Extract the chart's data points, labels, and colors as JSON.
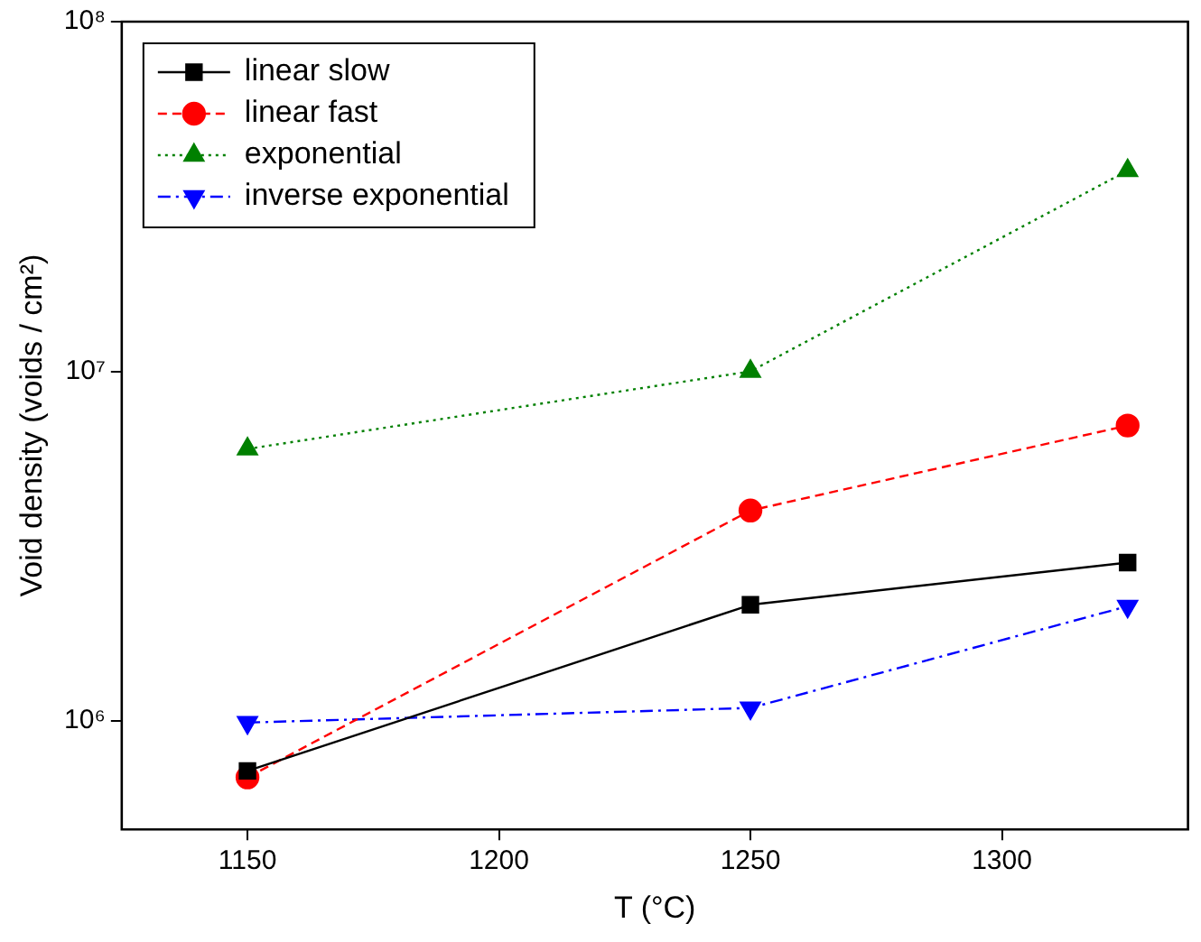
{
  "chart_data": {
    "type": "line",
    "xlabel": "T (°C)",
    "ylabel": "Void density (voids / cm²)",
    "x": [
      1150,
      1250,
      1325
    ],
    "series": [
      {
        "name": "linear slow",
        "color": "#000000",
        "marker": "square",
        "line_style": "solid",
        "values": [
          720000,
          2150000,
          2840000
        ]
      },
      {
        "name": "linear fast",
        "color": "#ff0000",
        "marker": "circle",
        "line_style": "dashed",
        "values": [
          690000,
          4000000,
          7000000
        ]
      },
      {
        "name": "exponential",
        "color": "#008000",
        "marker": "triangle",
        "line_style": "dotted",
        "values": [
          6000000,
          10000000,
          37500000
        ]
      },
      {
        "name": "inverse exponential",
        "color": "#0000ff",
        "marker": "triangle-down",
        "line_style": "dashdot",
        "values": [
          990000,
          1090000,
          2130000
        ]
      }
    ],
    "xlim": [
      1125,
      1337
    ],
    "xticks": [
      1150,
      1200,
      1250,
      1300
    ],
    "ylim": [
      490000,
      100000000
    ],
    "yticks": [
      {
        "value": 1000000,
        "label": "10⁶"
      },
      {
        "value": 10000000,
        "label": "10⁷"
      },
      {
        "value": 100000000,
        "label": "10⁸"
      }
    ],
    "log": "y",
    "grid": false,
    "legend": "top left"
  }
}
